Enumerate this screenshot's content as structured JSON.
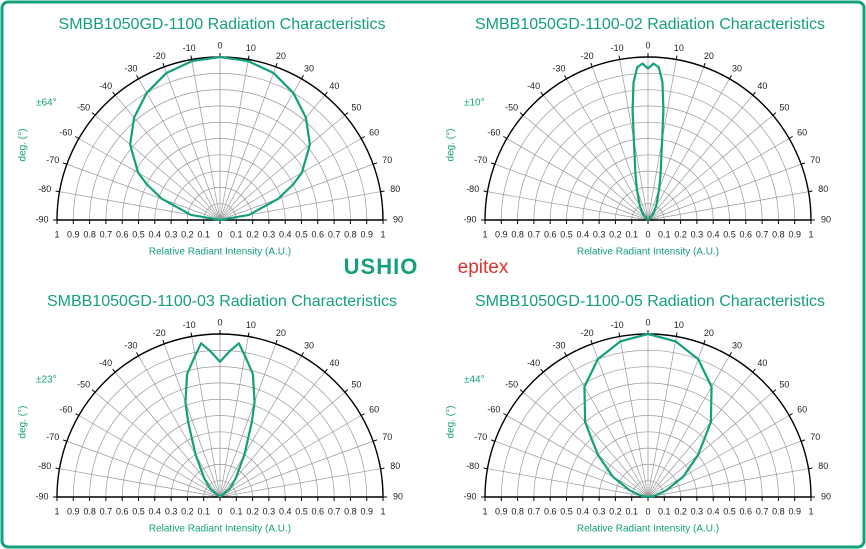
{
  "chart_data": [
    {
      "type": "polar",
      "title": "SMBB1050GD-1100 Radiation Characteristics",
      "annotation": "±64°",
      "xlabel": "Relative Radiant Intensity (A.U.)",
      "ylabel": "deg. (°)",
      "color": "#14a07d",
      "theta": [
        -90,
        -80,
        -70,
        -64,
        -60,
        -50,
        -40,
        -30,
        -20,
        -10,
        0,
        10,
        20,
        30,
        40,
        50,
        60,
        64,
        70,
        80,
        90
      ],
      "r": [
        0,
        0.18,
        0.38,
        0.5,
        0.58,
        0.72,
        0.82,
        0.9,
        0.96,
        0.99,
        1,
        0.99,
        0.96,
        0.9,
        0.82,
        0.72,
        0.58,
        0.5,
        0.38,
        0.18,
        0
      ],
      "rlim": [
        0,
        1
      ],
      "rticks": [
        0,
        0.1,
        0.2,
        0.3,
        0.4,
        0.5,
        0.6,
        0.7,
        0.8,
        0.9,
        1
      ],
      "thetalim": [
        -90,
        90
      ],
      "thetaticks": [
        -90,
        -80,
        -70,
        -60,
        -50,
        -40,
        -30,
        -20,
        -10,
        0,
        10,
        20,
        30,
        40,
        50,
        60,
        70,
        80,
        90
      ],
      "grid": true
    },
    {
      "type": "polar",
      "title": "SMBB1050GD-1100-02 Radiation Characteristics",
      "annotation": "±10°",
      "xlabel": "Relative Radiant Intensity (A.U.)",
      "ylabel": "deg. (°)",
      "color": "#14a07d",
      "theta": [
        -90,
        -40,
        -30,
        -20,
        -15,
        -10,
        -8,
        -6,
        -4,
        -2,
        0,
        2,
        4,
        6,
        8,
        10,
        15,
        20,
        30,
        40,
        90
      ],
      "r": [
        0,
        0.05,
        0.1,
        0.2,
        0.3,
        0.5,
        0.68,
        0.85,
        0.94,
        0.96,
        0.93,
        0.96,
        0.94,
        0.85,
        0.68,
        0.5,
        0.3,
        0.2,
        0.1,
        0.05,
        0
      ],
      "rlim": [
        0,
        1
      ],
      "rticks": [
        0,
        0.1,
        0.2,
        0.3,
        0.4,
        0.5,
        0.6,
        0.7,
        0.8,
        0.9,
        1
      ],
      "thetalim": [
        -90,
        90
      ],
      "thetaticks": [
        -90,
        -80,
        -70,
        -60,
        -50,
        -40,
        -30,
        -20,
        -10,
        0,
        10,
        20,
        30,
        40,
        50,
        60,
        70,
        80,
        90
      ],
      "grid": true
    },
    {
      "type": "polar",
      "title": "SMBB1050GD-1100-03 Radiation Characteristics",
      "annotation": "±23°",
      "xlabel": "Relative Radiant Intensity (A.U.)",
      "ylabel": "deg. (°)",
      "color": "#14a07d",
      "theta": [
        -90,
        -50,
        -40,
        -30,
        -23,
        -20,
        -15,
        -10,
        -7,
        -4,
        0,
        4,
        7,
        10,
        15,
        20,
        23,
        30,
        40,
        50,
        90
      ],
      "r": [
        0,
        0.08,
        0.15,
        0.3,
        0.5,
        0.62,
        0.78,
        0.88,
        0.95,
        0.9,
        0.83,
        0.9,
        0.95,
        0.88,
        0.78,
        0.62,
        0.5,
        0.3,
        0.15,
        0.08,
        0
      ],
      "rlim": [
        0,
        1
      ],
      "rticks": [
        0,
        0.1,
        0.2,
        0.3,
        0.4,
        0.5,
        0.6,
        0.7,
        0.8,
        0.9,
        1
      ],
      "thetalim": [
        -90,
        90
      ],
      "thetaticks": [
        -90,
        -80,
        -70,
        -60,
        -50,
        -40,
        -30,
        -20,
        -10,
        0,
        10,
        20,
        30,
        40,
        50,
        60,
        70,
        80,
        90
      ],
      "grid": true
    },
    {
      "type": "polar",
      "title": "SMBB1050GD-1100-05 Radiation Characteristics",
      "annotation": "±44°",
      "xlabel": "Relative Radiant Intensity (A.U.)",
      "ylabel": "deg. (°)",
      "color": "#14a07d",
      "theta": [
        -90,
        -80,
        -70,
        -60,
        -50,
        -44,
        -40,
        -30,
        -20,
        -10,
        0,
        10,
        20,
        30,
        40,
        44,
        50,
        60,
        70,
        80,
        90
      ],
      "r": [
        0,
        0.04,
        0.12,
        0.25,
        0.4,
        0.5,
        0.6,
        0.78,
        0.9,
        0.97,
        1,
        0.97,
        0.9,
        0.78,
        0.6,
        0.5,
        0.4,
        0.25,
        0.12,
        0.04,
        0
      ],
      "rlim": [
        0,
        1
      ],
      "rticks": [
        0,
        0.1,
        0.2,
        0.3,
        0.4,
        0.5,
        0.6,
        0.7,
        0.8,
        0.9,
        1
      ],
      "thetalim": [
        -90,
        90
      ],
      "thetaticks": [
        -90,
        -80,
        -70,
        -60,
        -50,
        -40,
        -30,
        -20,
        -10,
        0,
        10,
        20,
        30,
        40,
        50,
        60,
        70,
        80,
        90
      ],
      "grid": true
    }
  ],
  "logos": [
    "USHIO",
    "epitex"
  ]
}
